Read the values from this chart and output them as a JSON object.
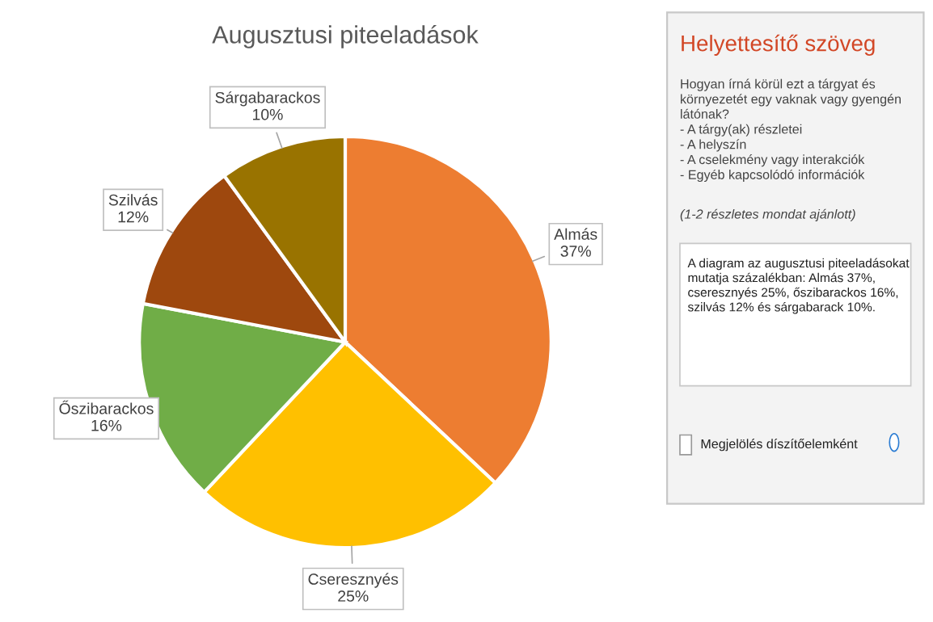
{
  "chart_data": [
    {
      "type": "pie",
      "title": "Augusztusi piteeladások",
      "categories": [
        "Almás",
        "Cseresznyés",
        "Őszibarackos",
        "Szilvás",
        "Sárgabarackos"
      ],
      "values": [
        37,
        25,
        16,
        12,
        10
      ],
      "colors": [
        "#ed7d31",
        "#ffc000",
        "#70ad47",
        "#9e480e",
        "#997300"
      ],
      "value_labels": [
        "37%",
        "25%",
        "16%",
        "12%",
        "10%"
      ],
      "legend": false
    },
    {
      "type": "other",
      "title": "Helyettesítő szöveg",
      "annotations": [
        "Hogyan írná körül ezt a tárgyat és\nkörnyezetét egy vaknak vagy gyengén\nlátónak?\n- A tárgy(ak) részletei\n- A helyszín\n- A cselekmény vagy interakciók\n- Egyéb kapcsolódó információk",
        "(1-2 részletes mondat ajánlott)",
        "A diagram az augusztusi piteeladásokat\nmutatja százalékban: Almás 37%,\ncseresznyés 25%, őszibarackos 16%,\nszilvás 12% és sárgabarack 10%.",
        "Megjelölés díszítőelemként"
      ]
    }
  ]
}
